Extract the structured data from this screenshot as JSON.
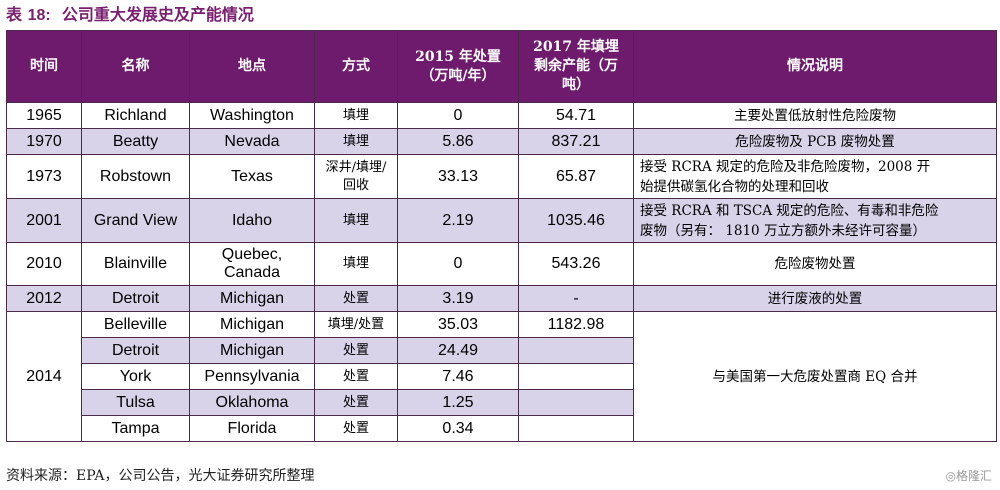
{
  "title_label": "表",
  "title_num": "18:",
  "title_text": "公司重大发展史及产能情况",
  "headers": [
    "时间",
    "名称",
    "地点",
    "方式",
    "2015 年处置\n（万吨/年）",
    "2017 年填埋\n剩余产能（万\n吨）",
    "情况说明"
  ],
  "rows": [
    {
      "year": "1965",
      "name": "Richland",
      "location": "Washington",
      "method": "填埋",
      "disposal_2015": "0",
      "capacity_2017": "54.71",
      "desc": "主要处置低放射性危险废物"
    },
    {
      "year": "1970",
      "name": "Beatty",
      "location": "Nevada",
      "method": "填埋",
      "disposal_2015": "5.86",
      "capacity_2017": "837.21",
      "desc": "危险废物及 PCB 废物处置"
    },
    {
      "year": "1973",
      "name": "Robstown",
      "location": "Texas",
      "method": "深井/填埋/\n回收",
      "disposal_2015": "33.13",
      "capacity_2017": "65.87",
      "desc": "接受 RCRA 规定的危险及非危险废物，2008 开\n始提供碳氢化合物的处理和回收"
    },
    {
      "year": "2001",
      "name": "Grand View",
      "location": "Idaho",
      "method": "填埋",
      "disposal_2015": "2.19",
      "capacity_2017": "1035.46",
      "desc": "接受 RCRA 和 TSCA 规定的危险、有毒和非危险\n废物（另有： 1810 万立方额外未经许可容量）"
    },
    {
      "year": "2010",
      "name": "Blainville",
      "location": "Quebec,\nCanada",
      "method": "填埋",
      "disposal_2015": "0",
      "capacity_2017": "543.26",
      "desc": "危险废物处置"
    },
    {
      "year": "2012",
      "name": "Detroit",
      "location": "Michigan",
      "method": "处置",
      "disposal_2015": "3.19",
      "capacity_2017": "-",
      "desc": "进行废液的处置"
    }
  ],
  "group_2014": {
    "year": "2014",
    "desc": "与美国第一大危废处置商 EQ 合并",
    "rows": [
      {
        "name": "Belleville",
        "location": "Michigan",
        "method": "填埋/处置",
        "disposal_2015": "35.03",
        "capacity_2017": "1182.98"
      },
      {
        "name": "Detroit",
        "location": "Michigan",
        "method": "处置",
        "disposal_2015": "24.49",
        "capacity_2017": ""
      },
      {
        "name": "York",
        "location": "Pennsylvania",
        "method": "处置",
        "disposal_2015": "7.46",
        "capacity_2017": ""
      },
      {
        "name": "Tulsa",
        "location": "Oklahoma",
        "method": "处置",
        "disposal_2015": "1.25",
        "capacity_2017": ""
      },
      {
        "name": "Tampa",
        "location": "Florida",
        "method": "处置",
        "disposal_2015": "0.34",
        "capacity_2017": ""
      }
    ]
  },
  "source": "资料来源：EPA，公司公告，光大证券研究所整理",
  "watermark": "◎格隆汇",
  "colors": {
    "header_bg": "#6E1B6E",
    "alt_row": "#D8D3E8",
    "title": "#7A1F6F"
  }
}
